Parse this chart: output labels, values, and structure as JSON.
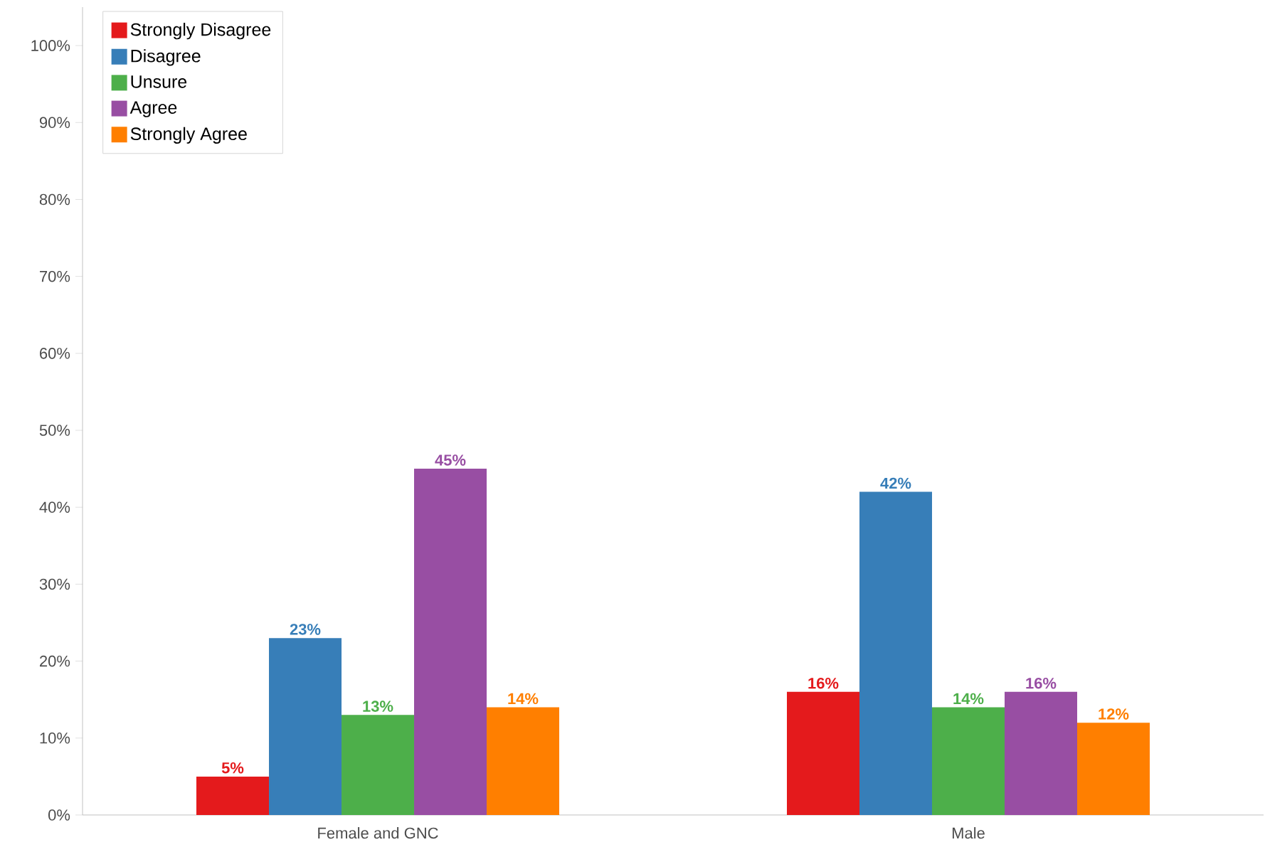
{
  "chart_data": {
    "type": "bar",
    "categories": [
      "Female and GNC",
      "Male"
    ],
    "series": [
      {
        "name": "Strongly Disagree",
        "color": "#e41a1c",
        "values": [
          5,
          16
        ],
        "value_labels": [
          "5%",
          "16%"
        ]
      },
      {
        "name": "Disagree",
        "color": "#377eb8",
        "values": [
          23,
          42
        ],
        "value_labels": [
          "23%",
          "42%"
        ]
      },
      {
        "name": "Unsure",
        "color": "#4daf4a",
        "values": [
          13,
          14
        ],
        "value_labels": [
          "13%",
          "14%"
        ]
      },
      {
        "name": "Agree",
        "color": "#984ea3",
        "values": [
          45,
          16
        ],
        "value_labels": [
          "45%",
          "16%"
        ]
      },
      {
        "name": "Strongly Agree",
        "color": "#ff7f00",
        "values": [
          14,
          12
        ],
        "value_labels": [
          "14%",
          "12%"
        ]
      }
    ],
    "ylim": [
      0,
      105
    ],
    "yticks": [
      {
        "value": 0,
        "label": "0%"
      },
      {
        "value": 10,
        "label": "10%"
      },
      {
        "value": 20,
        "label": "20%"
      },
      {
        "value": 30,
        "label": "30%"
      },
      {
        "value": 40,
        "label": "40%"
      },
      {
        "value": 50,
        "label": "50%"
      },
      {
        "value": 60,
        "label": "60%"
      },
      {
        "value": 70,
        "label": "70%"
      },
      {
        "value": 80,
        "label": "80%"
      },
      {
        "value": 90,
        "label": "90%"
      },
      {
        "value": 100,
        "label": "100%"
      }
    ],
    "legend": "top left",
    "grid": false
  }
}
